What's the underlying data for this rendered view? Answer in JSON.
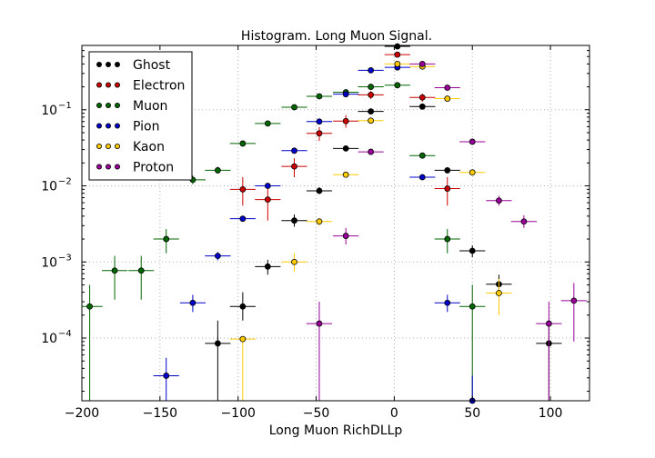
{
  "chart_data": {
    "type": "scatter",
    "title": "Histogram. Long Muon Signal.",
    "xlabel": "Long Muon RichDLLp",
    "ylabel": "",
    "xlim": [
      -200,
      125
    ],
    "ylim": [
      1.5e-05,
      0.7
    ],
    "yscale": "log",
    "grid": true,
    "legend_position": "top-left",
    "x_ticks": [
      {
        "value": -200,
        "label": "−200"
      },
      {
        "value": -150,
        "label": "−150"
      },
      {
        "value": -100,
        "label": "−100"
      },
      {
        "value": -50,
        "label": "−50"
      },
      {
        "value": 0,
        "label": "0"
      },
      {
        "value": 50,
        "label": "50"
      },
      {
        "value": 100,
        "label": "100"
      }
    ],
    "y_ticks": [
      {
        "value": 0.0001,
        "base": "10",
        "exp": "−4"
      },
      {
        "value": 0.001,
        "base": "10",
        "exp": "−3"
      },
      {
        "value": 0.01,
        "base": "10",
        "exp": "−2"
      },
      {
        "value": 0.1,
        "base": "10",
        "exp": "−1"
      }
    ],
    "series": [
      {
        "name": "Ghost",
        "color": "#000000",
        "points": [
          {
            "x": -113,
            "y": 8.5e-05,
            "ylo": 1e-05,
            "yhi": 0.00017
          },
          {
            "x": -97,
            "y": 0.00026,
            "ylo": 0.00017,
            "yhi": 0.0004
          },
          {
            "x": -81,
            "y": 0.00087,
            "ylo": 0.00068,
            "yhi": 0.00107
          },
          {
            "x": -64,
            "y": 0.0035,
            "ylo": 0.0029,
            "yhi": 0.0042
          },
          {
            "x": -48,
            "y": 0.0086,
            "ylo": 0.0078,
            "yhi": 0.0096
          },
          {
            "x": -31,
            "y": 0.031,
            "ylo": 0.029,
            "yhi": 0.033
          },
          {
            "x": -15,
            "y": 0.095,
            "ylo": 0.092,
            "yhi": 0.099
          },
          {
            "x": 2,
            "y": 0.68,
            "ylo": 0.67,
            "yhi": 0.69
          },
          {
            "x": 18,
            "y": 0.11,
            "ylo": 0.106,
            "yhi": 0.114
          },
          {
            "x": 34,
            "y": 0.016,
            "ylo": 0.0148,
            "yhi": 0.0173
          },
          {
            "x": 50,
            "y": 0.0014,
            "ylo": 0.00115,
            "yhi": 0.00165
          },
          {
            "x": 67,
            "y": 0.00051,
            "ylo": 0.00037,
            "yhi": 0.00068
          },
          {
            "x": 99,
            "y": 8.5e-05,
            "ylo": 1e-05,
            "yhi": 0.00017
          }
        ]
      },
      {
        "name": "Electron",
        "color": "#cc0000",
        "points": [
          {
            "x": -97,
            "y": 0.009,
            "ylo": 0.0055,
            "yhi": 0.013
          },
          {
            "x": -81,
            "y": 0.0066,
            "ylo": 0.0035,
            "yhi": 0.01
          },
          {
            "x": -64,
            "y": 0.018,
            "ylo": 0.013,
            "yhi": 0.023
          },
          {
            "x": -48,
            "y": 0.049,
            "ylo": 0.039,
            "yhi": 0.059
          },
          {
            "x": -31,
            "y": 0.071,
            "ylo": 0.058,
            "yhi": 0.085
          },
          {
            "x": -15,
            "y": 0.157,
            "ylo": 0.138,
            "yhi": 0.176
          },
          {
            "x": 2,
            "y": 0.53,
            "ylo": 0.5,
            "yhi": 0.56
          },
          {
            "x": 18,
            "y": 0.145,
            "ylo": 0.128,
            "yhi": 0.163
          },
          {
            "x": 34,
            "y": 0.0092,
            "ylo": 0.0055,
            "yhi": 0.013
          }
        ]
      },
      {
        "name": "Muon",
        "color": "#006600",
        "points": [
          {
            "x": -195,
            "y": 0.00026,
            "ylo": 1.5e-05,
            "yhi": 0.0005
          },
          {
            "x": -179,
            "y": 0.00077,
            "ylo": 0.00032,
            "yhi": 0.0012
          },
          {
            "x": -162,
            "y": 0.00077,
            "ylo": 0.00032,
            "yhi": 0.0012
          },
          {
            "x": -146,
            "y": 0.002,
            "ylo": 0.0013,
            "yhi": 0.0027
          },
          {
            "x": -129,
            "y": 0.012,
            "ylo": 0.0105,
            "yhi": 0.0136
          },
          {
            "x": -113,
            "y": 0.016,
            "ylo": 0.0145,
            "yhi": 0.0178
          },
          {
            "x": -97,
            "y": 0.036,
            "ylo": 0.034,
            "yhi": 0.038
          },
          {
            "x": -81,
            "y": 0.066,
            "ylo": 0.063,
            "yhi": 0.069
          },
          {
            "x": -64,
            "y": 0.108,
            "ylo": 0.104,
            "yhi": 0.112
          },
          {
            "x": -48,
            "y": 0.15,
            "ylo": 0.146,
            "yhi": 0.154
          },
          {
            "x": -31,
            "y": 0.17,
            "ylo": 0.166,
            "yhi": 0.174
          },
          {
            "x": -15,
            "y": 0.2,
            "ylo": 0.195,
            "yhi": 0.205
          },
          {
            "x": 2,
            "y": 0.21,
            "ylo": 0.205,
            "yhi": 0.215
          },
          {
            "x": 18,
            "y": 0.025,
            "ylo": 0.023,
            "yhi": 0.027
          },
          {
            "x": 34,
            "y": 0.002,
            "ylo": 0.0013,
            "yhi": 0.0027
          },
          {
            "x": 50,
            "y": 0.00026,
            "ylo": 1.5e-05,
            "yhi": 0.0005
          }
        ]
      },
      {
        "name": "Pion",
        "color": "#0000cc",
        "points": [
          {
            "x": -146,
            "y": 3.2e-05,
            "ylo": 1.5e-05,
            "yhi": 5.5e-05
          },
          {
            "x": -129,
            "y": 0.00029,
            "ylo": 0.00022,
            "yhi": 0.00037
          },
          {
            "x": -113,
            "y": 0.0012,
            "ylo": 0.00105,
            "yhi": 0.00135
          },
          {
            "x": -97,
            "y": 0.0037,
            "ylo": 0.0034,
            "yhi": 0.004
          },
          {
            "x": -81,
            "y": 0.01,
            "ylo": 0.0096,
            "yhi": 0.0105
          },
          {
            "x": -64,
            "y": 0.029,
            "ylo": 0.028,
            "yhi": 0.03
          },
          {
            "x": -48,
            "y": 0.07,
            "ylo": 0.068,
            "yhi": 0.072
          },
          {
            "x": -31,
            "y": 0.16,
            "ylo": 0.157,
            "yhi": 0.163
          },
          {
            "x": -15,
            "y": 0.33,
            "ylo": 0.325,
            "yhi": 0.335
          },
          {
            "x": 2,
            "y": 0.36,
            "ylo": 0.355,
            "yhi": 0.365
          },
          {
            "x": 18,
            "y": 0.013,
            "ylo": 0.0124,
            "yhi": 0.0136
          },
          {
            "x": 34,
            "y": 0.00029,
            "ylo": 0.00022,
            "yhi": 0.00037
          },
          {
            "x": 50,
            "y": 1.5e-05,
            "ylo": 1.5e-05,
            "yhi": 3.2e-05
          }
        ]
      },
      {
        "name": "Kaon",
        "color": "#ffcc00",
        "points": [
          {
            "x": -97,
            "y": 9.7e-05,
            "ylo": 1.5e-05,
            "yhi": 0.0001
          },
          {
            "x": -64,
            "y": 0.001,
            "ylo": 0.00074,
            "yhi": 0.0013
          },
          {
            "x": -48,
            "y": 0.0034,
            "ylo": 0.003,
            "yhi": 0.0038
          },
          {
            "x": -31,
            "y": 0.014,
            "ylo": 0.0133,
            "yhi": 0.0147
          },
          {
            "x": -15,
            "y": 0.072,
            "ylo": 0.07,
            "yhi": 0.074
          },
          {
            "x": 2,
            "y": 0.4,
            "ylo": 0.395,
            "yhi": 0.405
          },
          {
            "x": 18,
            "y": 0.37,
            "ylo": 0.365,
            "yhi": 0.375
          },
          {
            "x": 34,
            "y": 0.14,
            "ylo": 0.137,
            "yhi": 0.143
          },
          {
            "x": 50,
            "y": 0.015,
            "ylo": 0.0143,
            "yhi": 0.0158
          },
          {
            "x": 67,
            "y": 0.00039,
            "ylo": 0.0002,
            "yhi": 0.0006
          }
        ]
      },
      {
        "name": "Proton",
        "color": "#990099",
        "points": [
          {
            "x": -48,
            "y": 0.000155,
            "ylo": 1.5e-05,
            "yhi": 0.0003
          },
          {
            "x": -31,
            "y": 0.0022,
            "ylo": 0.0017,
            "yhi": 0.0028
          },
          {
            "x": -15,
            "y": 0.028,
            "ylo": 0.026,
            "yhi": 0.03
          },
          {
            "x": 18,
            "y": 0.4,
            "ylo": 0.39,
            "yhi": 0.41
          },
          {
            "x": 34,
            "y": 0.195,
            "ylo": 0.189,
            "yhi": 0.201
          },
          {
            "x": 50,
            "y": 0.038,
            "ylo": 0.036,
            "yhi": 0.04
          },
          {
            "x": 67,
            "y": 0.0064,
            "ylo": 0.0055,
            "yhi": 0.0074
          },
          {
            "x": 83,
            "y": 0.0034,
            "ylo": 0.0028,
            "yhi": 0.0041
          },
          {
            "x": 99,
            "y": 0.000155,
            "ylo": 1.5e-05,
            "yhi": 0.0003
          },
          {
            "x": 115,
            "y": 0.00031,
            "ylo": 9e-05,
            "yhi": 0.00053
          }
        ]
      }
    ]
  }
}
